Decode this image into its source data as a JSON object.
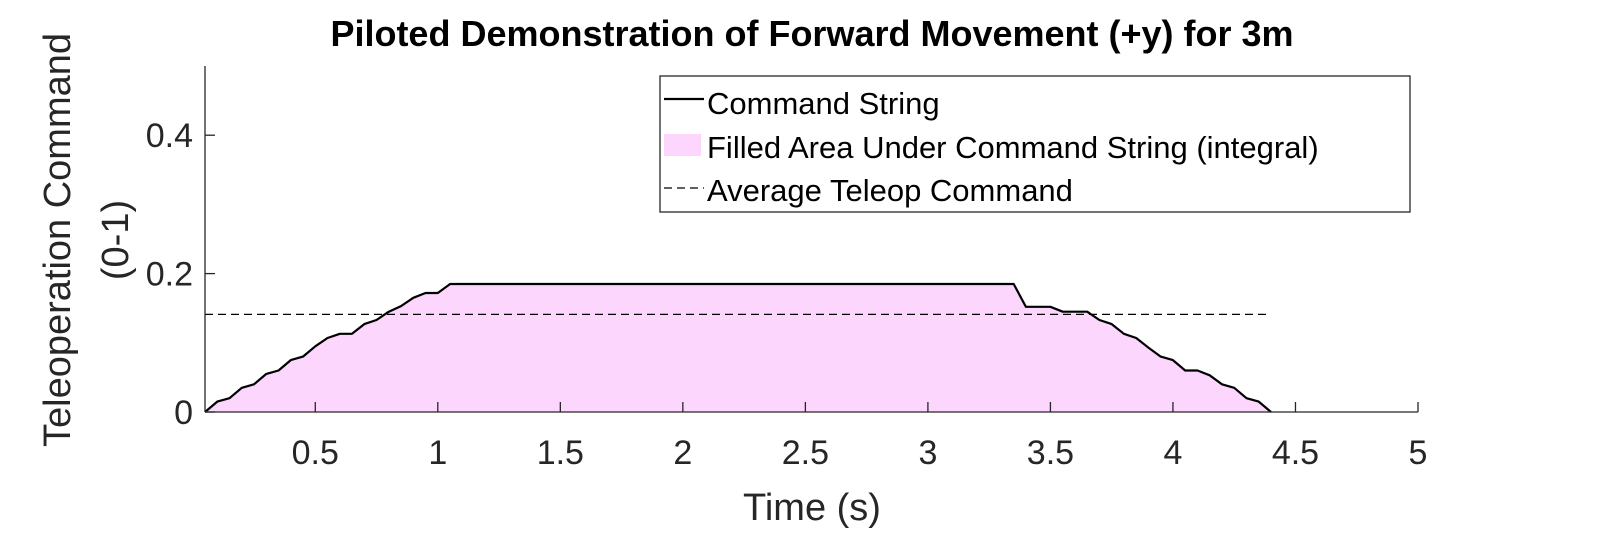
{
  "chart_data": {
    "type": "area",
    "title": "Piloted Demonstration of Forward Movement (+y) for 3m",
    "xlabel": "Time (s)",
    "ylabel_line1": "Teleoperation Command",
    "ylabel_line2": "(0-1)",
    "xlim": [
      0.05,
      5
    ],
    "ylim": [
      0,
      0.5
    ],
    "xticks": [
      0.5,
      1,
      1.5,
      2,
      2.5,
      3,
      3.5,
      4,
      4.5,
      5
    ],
    "xtick_labels": [
      "0.5",
      "1",
      "1.5",
      "2",
      "2.5",
      "3",
      "3.5",
      "4",
      "4.5",
      "5"
    ],
    "yticks": [
      0,
      0.2,
      0.4
    ],
    "ytick_labels": [
      "0",
      "0.2",
      "0.4"
    ],
    "legend_position": "top-right",
    "colors": {
      "command_line": "#000000",
      "fill": "#fcd6fc",
      "average_line": "#000000",
      "axis": "#262626"
    },
    "series": [
      {
        "name": "Command String",
        "x": [
          0.05,
          0.1,
          0.15,
          0.2,
          0.25,
          0.3,
          0.35,
          0.4,
          0.45,
          0.5,
          0.55,
          0.6,
          0.65,
          0.7,
          0.75,
          0.8,
          0.85,
          0.9,
          0.95,
          1.0,
          1.05,
          3.35,
          3.4,
          3.5,
          3.55,
          3.6,
          3.65,
          3.7,
          3.75,
          3.8,
          3.85,
          3.9,
          3.95,
          4.0,
          4.05,
          4.1,
          4.15,
          4.2,
          4.25,
          4.3,
          4.35,
          4.4
        ],
        "y": [
          0,
          0.015,
          0.02,
          0.035,
          0.04,
          0.055,
          0.06,
          0.075,
          0.08,
          0.095,
          0.107,
          0.113,
          0.113,
          0.127,
          0.133,
          0.145,
          0.153,
          0.165,
          0.172,
          0.172,
          0.185,
          0.185,
          0.152,
          0.152,
          0.145,
          0.145,
          0.145,
          0.133,
          0.127,
          0.113,
          0.107,
          0.093,
          0.08,
          0.075,
          0.06,
          0.06,
          0.053,
          0.04,
          0.035,
          0.02,
          0.015,
          0
        ]
      },
      {
        "name": "Filled Area Under Command String (integral)"
      },
      {
        "name": "Average Teleop Command",
        "x": [
          0.05,
          4.4
        ],
        "y": [
          0.141,
          0.141
        ]
      }
    ]
  }
}
